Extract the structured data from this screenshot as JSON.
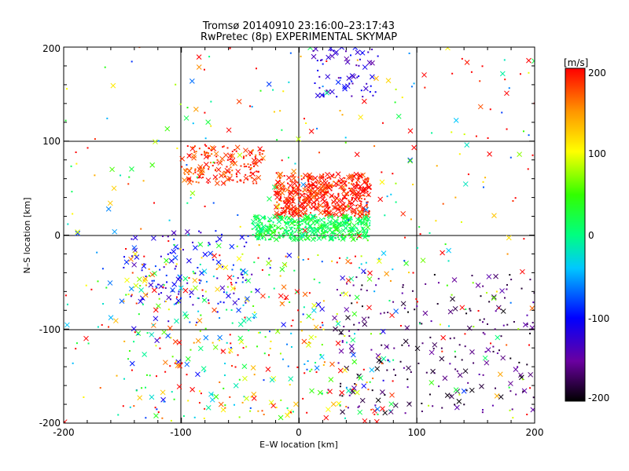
{
  "chart_data": {
    "type": "scatter",
    "title": "Tromsø 20140910 23:16:00–23:17:43",
    "subtitle": "RwPretec (8p) EXPERIMENTAL SKYMAP",
    "xlabel": "E–W location [km]",
    "ylabel": "N–S location [km]",
    "xlim": [
      -200,
      200
    ],
    "ylim": [
      -200,
      200
    ],
    "xticks": [
      -200,
      -100,
      0,
      100,
      200
    ],
    "yticks": [
      -200,
      -100,
      0,
      100,
      200
    ],
    "grid": true,
    "markers": [
      "x",
      "dot"
    ],
    "colorbar": {
      "label": "[m/s]",
      "min": -200,
      "max": 200,
      "ticks": [
        200,
        100,
        0,
        -100,
        -200
      ],
      "colormap": [
        "#000000",
        "#6a00a0",
        "#0000ff",
        "#00c8ff",
        "#00ff80",
        "#32ff00",
        "#ffff00",
        "#ff9600",
        "#ff0000"
      ]
    },
    "clusters": [
      {
        "region": "north-central red band",
        "x": [
          -20,
          60
        ],
        "y": [
          20,
          65
        ],
        "velocity": 190,
        "count": 520
      },
      {
        "region": "north-west red band",
        "x": [
          -100,
          -30
        ],
        "y": [
          55,
          95
        ],
        "velocity": 185,
        "count": 180
      },
      {
        "region": "central cyan-green band",
        "x": [
          -40,
          60
        ],
        "y": [
          -5,
          20
        ],
        "velocity": 20,
        "count": 420
      },
      {
        "region": "west blue streak",
        "x": [
          -150,
          -40
        ],
        "y": [
          -75,
          5
        ],
        "velocity": -110,
        "count": 110
      },
      {
        "region": "northern blue patch",
        "x": [
          10,
          70
        ],
        "y": [
          145,
          200
        ],
        "velocity": -120,
        "count": 70
      },
      {
        "region": "south-east dark points",
        "x": [
          30,
          200
        ],
        "y": [
          -190,
          -40
        ],
        "velocity": -170,
        "count": 230
      },
      {
        "region": "southern mixed",
        "x": [
          -150,
          80
        ],
        "y": [
          -195,
          -20
        ],
        "velocity": 60,
        "count": 360
      },
      {
        "region": "scattered background",
        "x": [
          -200,
          200
        ],
        "y": [
          -200,
          200
        ],
        "velocity": 100,
        "count": 420
      }
    ]
  }
}
